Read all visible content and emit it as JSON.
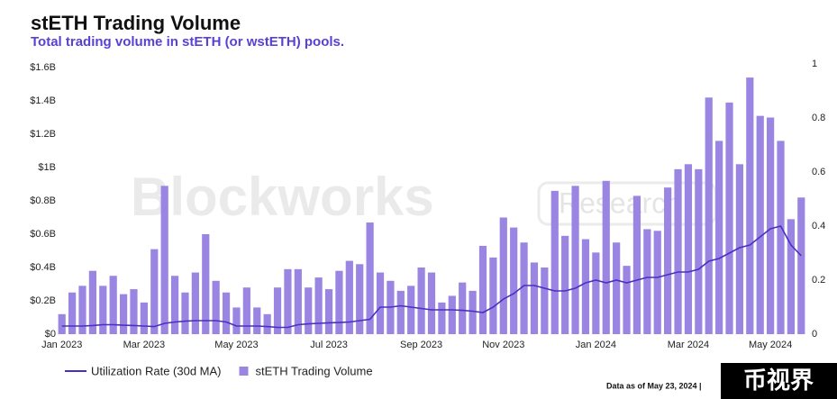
{
  "chart_data": {
    "type": "bar",
    "title": "stETH Trading Volume",
    "subtitle": "Total trading volume in stETH (or wstETH) pools.",
    "watermark": [
      "Blockworks",
      "Research"
    ],
    "footer": "Data as of May 23, 2024 |",
    "badge": "币视界",
    "categories": [
      "Jan 2023",
      null,
      null,
      null,
      null,
      null,
      null,
      null,
      "Mar 2023",
      null,
      null,
      null,
      null,
      null,
      null,
      null,
      null,
      "May 2023",
      null,
      null,
      null,
      null,
      null,
      null,
      null,
      null,
      "Jul 2023",
      null,
      null,
      null,
      null,
      null,
      null,
      null,
      null,
      "Sep 2023",
      null,
      null,
      null,
      null,
      null,
      null,
      null,
      "Nov 2023",
      null,
      null,
      null,
      null,
      null,
      null,
      null,
      null,
      "Jan 2024",
      null,
      null,
      null,
      null,
      null,
      null,
      null,
      null,
      "Mar 2024",
      null,
      null,
      null,
      null,
      null,
      null,
      null,
      "May 2024",
      null,
      null,
      null
    ],
    "series": [
      {
        "name": "stETH Trading Volume",
        "color": "#9a85e2",
        "values": [
          0.12,
          0.25,
          0.29,
          0.38,
          0.29,
          0.35,
          0.24,
          0.27,
          0.19,
          0.51,
          0.89,
          0.35,
          0.25,
          0.37,
          0.6,
          0.32,
          0.25,
          0.16,
          0.28,
          0.16,
          0.12,
          0.28,
          0.39,
          0.39,
          0.28,
          0.34,
          0.27,
          0.38,
          0.44,
          0.42,
          0.67,
          0.37,
          0.32,
          0.26,
          0.29,
          0.4,
          0.37,
          0.19,
          0.23,
          0.31,
          0.26,
          0.53,
          0.46,
          0.7,
          0.64,
          0.55,
          0.43,
          0.4,
          0.86,
          0.59,
          0.89,
          0.57,
          0.49,
          0.92,
          0.55,
          0.41,
          0.83,
          0.63,
          0.62,
          0.88,
          0.99,
          1.02,
          0.99,
          1.42,
          1.16,
          1.39,
          1.02,
          1.54,
          1.31,
          1.3,
          1.16,
          0.69,
          0.82
        ]
      },
      {
        "name": "Utilization Rate (30d MA)",
        "color": "#4b2fc0",
        "axis": "y2",
        "values": [
          0.03,
          0.03,
          0.03,
          0.032,
          0.035,
          0.035,
          0.033,
          0.032,
          0.03,
          0.028,
          0.04,
          0.045,
          0.048,
          0.05,
          0.05,
          0.05,
          0.045,
          0.03,
          0.03,
          0.03,
          0.028,
          0.025,
          0.025,
          0.035,
          0.038,
          0.04,
          0.042,
          0.043,
          0.045,
          0.05,
          0.055,
          0.1,
          0.1,
          0.105,
          0.1,
          0.095,
          0.09,
          0.09,
          0.09,
          0.088,
          0.085,
          0.08,
          0.1,
          0.13,
          0.15,
          0.18,
          0.18,
          0.17,
          0.16,
          0.16,
          0.17,
          0.19,
          0.2,
          0.19,
          0.2,
          0.19,
          0.2,
          0.21,
          0.21,
          0.22,
          0.23,
          0.23,
          0.24,
          0.27,
          0.28,
          0.3,
          0.32,
          0.33,
          0.36,
          0.39,
          0.4,
          0.33,
          0.29
        ]
      }
    ],
    "ylim": [
      0,
      1.6
    ],
    "yticks": [
      {
        "value": 0,
        "label": "$0"
      },
      {
        "value": 0.2,
        "label": "$0.2B"
      },
      {
        "value": 0.4,
        "label": "$0.4B"
      },
      {
        "value": 0.6,
        "label": "$0.6B"
      },
      {
        "value": 0.8,
        "label": "$0.8B"
      },
      {
        "value": 1,
        "label": "$1B"
      },
      {
        "value": 1.2,
        "label": "$1.2B"
      },
      {
        "value": 1.4,
        "label": "$1.4B"
      },
      {
        "value": 1.6,
        "label": "$1.6B"
      }
    ],
    "y2lim": [
      0,
      1
    ],
    "y2ticks": [
      0,
      0.2,
      0.4,
      0.6,
      0.8,
      1
    ],
    "grid": false,
    "legend": "bottom-left"
  }
}
